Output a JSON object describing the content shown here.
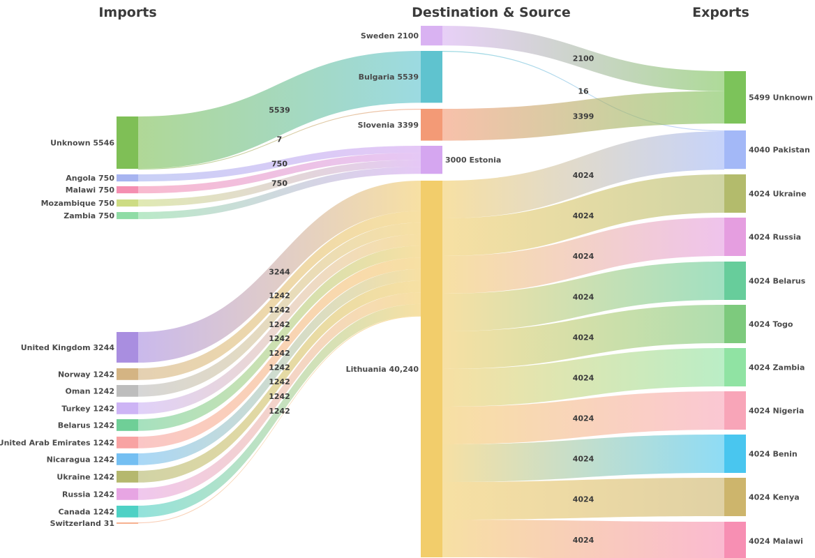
{
  "headers": {
    "imports": "Imports",
    "middle": "Destination & Source",
    "exports": "Exports"
  },
  "import_nodes": [
    {
      "name": "Unknown",
      "value": 5546,
      "label": "Unknown 5546",
      "color": "#7fbf56"
    },
    {
      "name": "Angola",
      "value": 750,
      "label": "Angola 750",
      "color": "#a7b4f0"
    },
    {
      "name": "Malawi",
      "value": 750,
      "label": "Malawi 750",
      "color": "#f48fb1"
    },
    {
      "name": "Mozambique",
      "value": 750,
      "label": "Mozambique 750",
      "color": "#cddc83"
    },
    {
      "name": "Zambia",
      "value": 750,
      "label": "Zambia 750",
      "color": "#8fdca5"
    },
    {
      "name": "United Kingdom",
      "value": 3244,
      "label": "United Kingdom 3244",
      "color": "#a98ee0"
    },
    {
      "name": "Norway",
      "value": 1242,
      "label": "Norway 1242",
      "color": "#d4b483"
    },
    {
      "name": "Oman",
      "value": 1242,
      "label": "Oman 1242",
      "color": "#bdbdbd"
    },
    {
      "name": "Turkey",
      "value": 1242,
      "label": "Turkey 1242",
      "color": "#cdb4f5"
    },
    {
      "name": "Belarus",
      "value": 1242,
      "label": "Belarus 1242",
      "color": "#6fcf97"
    },
    {
      "name": "United Arab Emirates",
      "value": 1242,
      "label": "United Arab Emirates 1242",
      "color": "#f8a3a3"
    },
    {
      "name": "Nicaragua",
      "value": 1242,
      "label": "Nicaragua 1242",
      "color": "#74bff2"
    },
    {
      "name": "Ukraine",
      "value": 1242,
      "label": "Ukraine 1242",
      "color": "#b5b86e"
    },
    {
      "name": "Russia",
      "value": 1242,
      "label": "Russia 1242",
      "color": "#e7a5e3"
    },
    {
      "name": "Canada",
      "value": 1242,
      "label": "Canada 1242",
      "color": "#4fd1c5"
    },
    {
      "name": "Switzerland",
      "value": 31,
      "label": "Switzerland 31",
      "color": "#f6b08f"
    }
  ],
  "middle_nodes": [
    {
      "name": "Sweden",
      "value": 2100,
      "label": "Sweden 2100",
      "color": "#d9b2f2"
    },
    {
      "name": "Bulgaria",
      "value": 5539,
      "label": "Bulgaria 5539",
      "color": "#5fc3cf"
    },
    {
      "name": "Slovenia",
      "value": 3399,
      "label": "Slovenia 3399",
      "color": "#f39a76"
    },
    {
      "name": "Estonia",
      "value": 3000,
      "label": "3000 Estonia",
      "color": "#d5a6f0"
    },
    {
      "name": "Lithuania",
      "value": 40240,
      "label": "Lithuania 40,240",
      "color": "#f2cd6b"
    }
  ],
  "export_nodes": [
    {
      "name": "Unknown",
      "value": 5499,
      "label": "5499 Unknown",
      "color": "#7cc35a"
    },
    {
      "name": "Pakistan",
      "value": 4040,
      "label": "4040 Pakistan",
      "color": "#a3b8f7"
    },
    {
      "name": "Ukraine",
      "value": 4024,
      "label": "4024 Ukraine",
      "color": "#b3bb6c"
    },
    {
      "name": "Russia",
      "value": 4024,
      "label": "4024 Russia",
      "color": "#e59ee0"
    },
    {
      "name": "Belarus",
      "value": 4024,
      "label": "4024 Belarus",
      "color": "#67cd9b"
    },
    {
      "name": "Togo",
      "value": 4024,
      "label": "4024 Togo",
      "color": "#7dca7d"
    },
    {
      "name": "Zambia",
      "value": 4024,
      "label": "4024 Zambia",
      "color": "#90e3a3"
    },
    {
      "name": "Nigeria",
      "value": 4024,
      "label": "4024 Nigeria",
      "color": "#f8a5b8"
    },
    {
      "name": "Benin",
      "value": 4024,
      "label": "4024 Benin",
      "color": "#49c6ef"
    },
    {
      "name": "Kenya",
      "value": 4024,
      "label": "4024 Kenya",
      "color": "#cdb56c"
    },
    {
      "name": "Malawi",
      "value": 4024,
      "label": "4024 Malawi",
      "color": "#f78fb3"
    }
  ],
  "import_flows": [
    {
      "source": "Unknown",
      "target": "Bulgaria",
      "value": 5539,
      "label": "5539"
    },
    {
      "source": "Unknown",
      "target": "Slovenia",
      "value": 7,
      "label": "7"
    },
    {
      "source": "Angola",
      "target": "Estonia",
      "value": 750,
      "label": "750"
    },
    {
      "source": "Malawi",
      "target": "Estonia",
      "value": 750,
      "label": ""
    },
    {
      "source": "Mozambique",
      "target": "Estonia",
      "value": 750,
      "label": "750"
    },
    {
      "source": "Zambia",
      "target": "Estonia",
      "value": 750,
      "label": ""
    },
    {
      "source": "United Kingdom",
      "target": "Lithuania",
      "value": 3244,
      "label": "3244"
    },
    {
      "source": "Norway",
      "target": "Lithuania",
      "value": 1242,
      "label": "1242"
    },
    {
      "source": "Oman",
      "target": "Lithuania",
      "value": 1242,
      "label": "1242"
    },
    {
      "source": "Turkey",
      "target": "Lithuania",
      "value": 1242,
      "label": "1242"
    },
    {
      "source": "Belarus",
      "target": "Lithuania",
      "value": 1242,
      "label": "1242"
    },
    {
      "source": "United Arab Emirates",
      "target": "Lithuania",
      "value": 1242,
      "label": "1242"
    },
    {
      "source": "Nicaragua",
      "target": "Lithuania",
      "value": 1242,
      "label": "1242"
    },
    {
      "source": "Ukraine",
      "target": "Lithuania",
      "value": 1242,
      "label": "1242"
    },
    {
      "source": "Russia",
      "target": "Lithuania",
      "value": 1242,
      "label": "1242"
    },
    {
      "source": "Canada",
      "target": "Lithuania",
      "value": 1242,
      "label": "1242"
    },
    {
      "source": "Switzerland",
      "target": "Lithuania",
      "value": 31,
      "label": ""
    }
  ],
  "export_flows": [
    {
      "source": "Sweden",
      "target": "Unknown",
      "value": 2100,
      "label": "2100"
    },
    {
      "source": "Bulgaria",
      "target": "Pakistan",
      "value": 16,
      "label": "16"
    },
    {
      "source": "Slovenia",
      "target": "Unknown",
      "value": 3399,
      "label": "3399"
    },
    {
      "source": "Lithuania",
      "target": "Pakistan",
      "value": 4024,
      "label": "4024"
    },
    {
      "source": "Lithuania",
      "target": "Ukraine",
      "value": 4024,
      "label": "4024"
    },
    {
      "source": "Lithuania",
      "target": "Russia",
      "value": 4024,
      "label": "4024"
    },
    {
      "source": "Lithuania",
      "target": "Belarus",
      "value": 4024,
      "label": "4024"
    },
    {
      "source": "Lithuania",
      "target": "Togo",
      "value": 4024,
      "label": "4024"
    },
    {
      "source": "Lithuania",
      "target": "Zambia",
      "value": 4024,
      "label": "4024"
    },
    {
      "source": "Lithuania",
      "target": "Nigeria",
      "value": 4024,
      "label": "4024"
    },
    {
      "source": "Lithuania",
      "target": "Benin",
      "value": 4024,
      "label": "4024"
    },
    {
      "source": "Lithuania",
      "target": "Kenya",
      "value": 4024,
      "label": "4024"
    },
    {
      "source": "Lithuania",
      "target": "Malawi",
      "value": 4024,
      "label": "4024"
    }
  ]
}
